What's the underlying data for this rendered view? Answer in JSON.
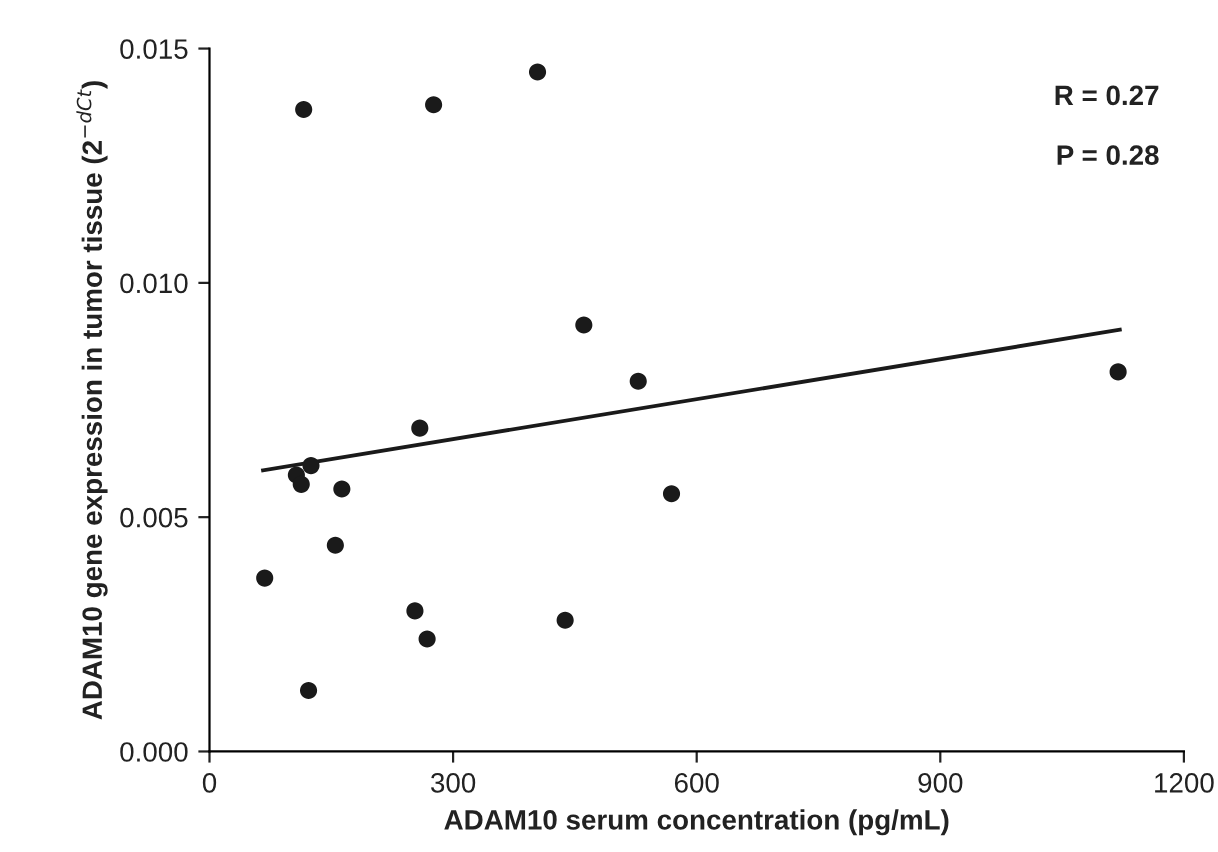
{
  "chart_data": {
    "type": "scatter",
    "xlabel": "ADAM10 serum concentration (pg/mL)",
    "ylabel": "ADAM10 gene expression in tumor tissue (2$^{−dCt}$)",
    "annotations": [
      "R = 0.27",
      "P = 0.28"
    ],
    "series": [
      {
        "color": "#1a1a1a",
        "marker": "circle",
        "x": [
          68,
          116,
          107,
          113,
          125,
          122,
          155,
          163,
          253,
          259,
          268,
          276,
          404,
          438,
          461,
          528,
          569,
          1119
        ],
        "values": [
          0.0037,
          0.0137,
          0.0059,
          0.0057,
          0.0061,
          0.0013,
          0.0044,
          0.0056,
          0.003,
          0.0069,
          0.0024,
          0.0138,
          0.0145,
          0.0028,
          0.0091,
          0.0079,
          0.0055,
          0.0081
        ]
      },
      {
        "type": "line",
        "color": "#1a1a1a",
        "x": [
          66,
          1121
        ],
        "values": [
          0.006,
          0.009
        ]
      }
    ],
    "xlim": [
      0,
      1200
    ],
    "ylim": [
      0,
      0.015
    ],
    "xticks": [
      0,
      300,
      600,
      900,
      1200
    ],
    "yticks": [
      {
        "value": 0,
        "label": "0.000"
      },
      {
        "value": 0.005,
        "label": "0.005"
      },
      {
        "value": 0.01,
        "label": "0.010"
      },
      {
        "value": 0.015,
        "label": "0.015"
      }
    ],
    "grid": false
  }
}
